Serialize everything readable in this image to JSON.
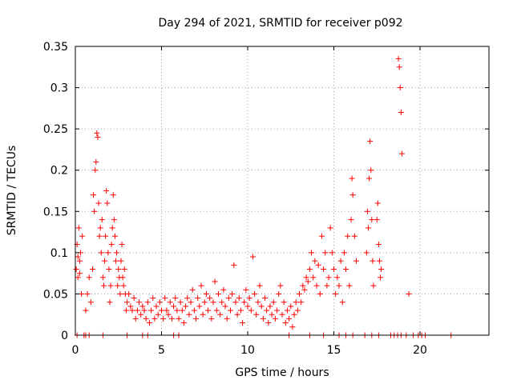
{
  "chart_data": {
    "type": "scatter",
    "title": "Day 294 of 2021, SRMTID for receiver p092",
    "xlabel": "GPS time / hours",
    "ylabel": "SRMTID / TECUs",
    "xlim": [
      0,
      24
    ],
    "ylim": [
      0,
      0.35
    ],
    "xticks": [
      0,
      5,
      10,
      15,
      20
    ],
    "yticks": [
      0,
      0.05,
      0.1,
      0.15,
      0.2,
      0.25,
      0.3,
      0.35
    ],
    "xtick_labels": [
      "0",
      "5",
      "10",
      "15",
      "20"
    ],
    "ytick_labels": [
      "0",
      "0.05",
      "0.1",
      "0.15",
      "0.2",
      "0.25",
      "0.3",
      "0.35"
    ],
    "grid": true,
    "marker": "+",
    "color": "#ff0000",
    "series": [
      {
        "name": "SRMTID",
        "points": [
          [
            0.05,
            0.08
          ],
          [
            0.1,
            0.11
          ],
          [
            0.15,
            0.07
          ],
          [
            0.2,
            0.13
          ],
          [
            0.25,
            0.09
          ],
          [
            0.3,
            0.1
          ],
          [
            0.35,
            0.05
          ],
          [
            0.4,
            0.12
          ],
          [
            0.15,
            0.095
          ],
          [
            0.25,
            0.075
          ],
          [
            0.6,
            0.03
          ],
          [
            0.7,
            0.05
          ],
          [
            0.8,
            0.07
          ],
          [
            0.9,
            0.04
          ],
          [
            1.0,
            0.08
          ],
          [
            1.05,
            0.17
          ],
          [
            1.1,
            0.15
          ],
          [
            1.15,
            0.2
          ],
          [
            1.2,
            0.21
          ],
          [
            1.25,
            0.245
          ],
          [
            1.3,
            0.24
          ],
          [
            1.35,
            0.16
          ],
          [
            1.4,
            0.12
          ],
          [
            1.45,
            0.13
          ],
          [
            1.5,
            0.1
          ],
          [
            1.55,
            0.14
          ],
          [
            1.6,
            0.07
          ],
          [
            1.65,
            0.06
          ],
          [
            1.7,
            0.09
          ],
          [
            1.75,
            0.12
          ],
          [
            1.8,
            0.175
          ],
          [
            1.85,
            0.16
          ],
          [
            1.9,
            0.1
          ],
          [
            1.95,
            0.08
          ],
          [
            2.0,
            0.04
          ],
          [
            2.05,
            0.06
          ],
          [
            2.1,
            0.11
          ],
          [
            2.15,
            0.13
          ],
          [
            2.2,
            0.17
          ],
          [
            2.25,
            0.14
          ],
          [
            2.3,
            0.12
          ],
          [
            2.35,
            0.09
          ],
          [
            2.4,
            0.1
          ],
          [
            2.45,
            0.06
          ],
          [
            2.5,
            0.08
          ],
          [
            2.55,
            0.07
          ],
          [
            2.6,
            0.05
          ],
          [
            2.65,
            0.09
          ],
          [
            2.7,
            0.11
          ],
          [
            2.75,
            0.07
          ],
          [
            2.8,
            0.06
          ],
          [
            2.85,
            0.08
          ],
          [
            2.9,
            0.05
          ],
          [
            2.95,
            0.03
          ],
          [
            3.0,
            0.04
          ],
          [
            3.1,
            0.05
          ],
          [
            3.2,
            0.035
          ],
          [
            3.3,
            0.03
          ],
          [
            3.4,
            0.045
          ],
          [
            3.5,
            0.02
          ],
          [
            3.6,
            0.03
          ],
          [
            3.7,
            0.04
          ],
          [
            3.8,
            0.025
          ],
          [
            3.9,
            0.035
          ],
          [
            4.0,
            0.03
          ],
          [
            4.1,
            0.02
          ],
          [
            4.2,
            0.04
          ],
          [
            4.3,
            0.015
          ],
          [
            4.4,
            0.03
          ],
          [
            4.5,
            0.045
          ],
          [
            4.6,
            0.02
          ],
          [
            4.7,
            0.035
          ],
          [
            4.8,
            0.025
          ],
          [
            4.9,
            0.04
          ],
          [
            5.0,
            0.03
          ],
          [
            5.1,
            0.02
          ],
          [
            5.2,
            0.045
          ],
          [
            5.3,
            0.03
          ],
          [
            5.4,
            0.025
          ],
          [
            5.5,
            0.04
          ],
          [
            5.6,
            0.02
          ],
          [
            5.7,
            0.035
          ],
          [
            5.8,
            0.045
          ],
          [
            5.9,
            0.03
          ],
          [
            6.0,
            0.02
          ],
          [
            6.1,
            0.04
          ],
          [
            6.2,
            0.03
          ],
          [
            6.3,
            0.015
          ],
          [
            6.4,
            0.035
          ],
          [
            6.5,
            0.045
          ],
          [
            6.6,
            0.025
          ],
          [
            6.7,
            0.04
          ],
          [
            6.8,
            0.055
          ],
          [
            6.9,
            0.03
          ],
          [
            7.0,
            0.02
          ],
          [
            7.1,
            0.045
          ],
          [
            7.2,
            0.035
          ],
          [
            7.3,
            0.06
          ],
          [
            7.4,
            0.025
          ],
          [
            7.5,
            0.04
          ],
          [
            7.6,
            0.05
          ],
          [
            7.7,
            0.03
          ],
          [
            7.8,
            0.045
          ],
          [
            7.9,
            0.02
          ],
          [
            8.0,
            0.04
          ],
          [
            8.1,
            0.065
          ],
          [
            8.2,
            0.03
          ],
          [
            8.3,
            0.05
          ],
          [
            8.4,
            0.025
          ],
          [
            8.5,
            0.04
          ],
          [
            8.6,
            0.055
          ],
          [
            8.7,
            0.035
          ],
          [
            8.8,
            0.02
          ],
          [
            8.9,
            0.045
          ],
          [
            9.0,
            0.03
          ],
          [
            9.1,
            0.05
          ],
          [
            9.2,
            0.085
          ],
          [
            9.3,
            0.04
          ],
          [
            9.4,
            0.025
          ],
          [
            9.5,
            0.045
          ],
          [
            9.6,
            0.03
          ],
          [
            9.7,
            0.015
          ],
          [
            9.8,
            0.04
          ],
          [
            9.9,
            0.055
          ],
          [
            10.0,
            0.035
          ],
          [
            10.1,
            0.045
          ],
          [
            10.2,
            0.03
          ],
          [
            10.3,
            0.095
          ],
          [
            10.4,
            0.05
          ],
          [
            10.5,
            0.025
          ],
          [
            10.6,
            0.04
          ],
          [
            10.7,
            0.06
          ],
          [
            10.8,
            0.035
          ],
          [
            10.9,
            0.02
          ],
          [
            11.0,
            0.045
          ],
          [
            11.1,
            0.03
          ],
          [
            11.2,
            0.015
          ],
          [
            11.3,
            0.035
          ],
          [
            11.4,
            0.025
          ],
          [
            11.5,
            0.04
          ],
          [
            11.6,
            0.02
          ],
          [
            11.7,
            0.03
          ],
          [
            11.8,
            0.05
          ],
          [
            11.9,
            0.06
          ],
          [
            12.0,
            0.025
          ],
          [
            12.1,
            0.04
          ],
          [
            12.2,
            0.015
          ],
          [
            12.3,
            0.03
          ],
          [
            12.4,
            0.02
          ],
          [
            12.5,
            0.035
          ],
          [
            12.6,
            0.01
          ],
          [
            12.7,
            0.025
          ],
          [
            12.8,
            0.04
          ],
          [
            12.9,
            0.03
          ],
          [
            13.0,
            0.05
          ],
          [
            13.1,
            0.04
          ],
          [
            13.2,
            0.06
          ],
          [
            13.3,
            0.055
          ],
          [
            13.4,
            0.07
          ],
          [
            13.5,
            0.065
          ],
          [
            13.6,
            0.08
          ],
          [
            13.7,
            0.1
          ],
          [
            13.8,
            0.07
          ],
          [
            13.9,
            0.09
          ],
          [
            14.0,
            0.06
          ],
          [
            14.1,
            0.085
          ],
          [
            14.2,
            0.05
          ],
          [
            14.3,
            0.12
          ],
          [
            14.4,
            0.08
          ],
          [
            14.5,
            0.1
          ],
          [
            14.6,
            0.06
          ],
          [
            14.7,
            0.07
          ],
          [
            14.8,
            0.13
          ],
          [
            14.9,
            0.1
          ],
          [
            15.0,
            0.08
          ],
          [
            15.1,
            0.05
          ],
          [
            15.2,
            0.07
          ],
          [
            15.3,
            0.06
          ],
          [
            15.4,
            0.09
          ],
          [
            15.5,
            0.04
          ],
          [
            15.6,
            0.1
          ],
          [
            15.7,
            0.08
          ],
          [
            15.8,
            0.12
          ],
          [
            15.9,
            0.06
          ],
          [
            16.0,
            0.14
          ],
          [
            16.05,
            0.19
          ],
          [
            16.1,
            0.17
          ],
          [
            16.2,
            0.12
          ],
          [
            16.3,
            0.09
          ],
          [
            16.9,
            0.1
          ],
          [
            16.95,
            0.15
          ],
          [
            17.0,
            0.13
          ],
          [
            17.05,
            0.19
          ],
          [
            17.1,
            0.235
          ],
          [
            17.15,
            0.2
          ],
          [
            17.2,
            0.14
          ],
          [
            17.25,
            0.09
          ],
          [
            17.3,
            0.06
          ],
          [
            17.5,
            0.14
          ],
          [
            17.55,
            0.16
          ],
          [
            17.6,
            0.11
          ],
          [
            17.65,
            0.09
          ],
          [
            17.7,
            0.07
          ],
          [
            17.75,
            0.08
          ],
          [
            18.75,
            0.335
          ],
          [
            18.8,
            0.325
          ],
          [
            18.85,
            0.3
          ],
          [
            18.9,
            0.27
          ],
          [
            18.95,
            0.22
          ],
          [
            19.35,
            0.05
          ],
          [
            0.1,
            0
          ],
          [
            0.5,
            0
          ],
          [
            0.6,
            0
          ],
          [
            0.8,
            0
          ],
          [
            1.6,
            0
          ],
          [
            3.0,
            0
          ],
          [
            3.9,
            0
          ],
          [
            4.2,
            0
          ],
          [
            5.7,
            0
          ],
          [
            6.0,
            0
          ],
          [
            12.4,
            0
          ],
          [
            13.6,
            0
          ],
          [
            14.4,
            0
          ],
          [
            15.3,
            0
          ],
          [
            15.7,
            0
          ],
          [
            16.1,
            0
          ],
          [
            16.8,
            0
          ],
          [
            17.2,
            0
          ],
          [
            17.6,
            0
          ],
          [
            18.3,
            0
          ],
          [
            18.5,
            0
          ],
          [
            18.7,
            0
          ],
          [
            18.9,
            0
          ],
          [
            19.2,
            0
          ],
          [
            19.6,
            0
          ],
          [
            19.9,
            0
          ],
          [
            20.1,
            0
          ],
          [
            20.3,
            0
          ],
          [
            21.8,
            0
          ]
        ]
      }
    ]
  }
}
